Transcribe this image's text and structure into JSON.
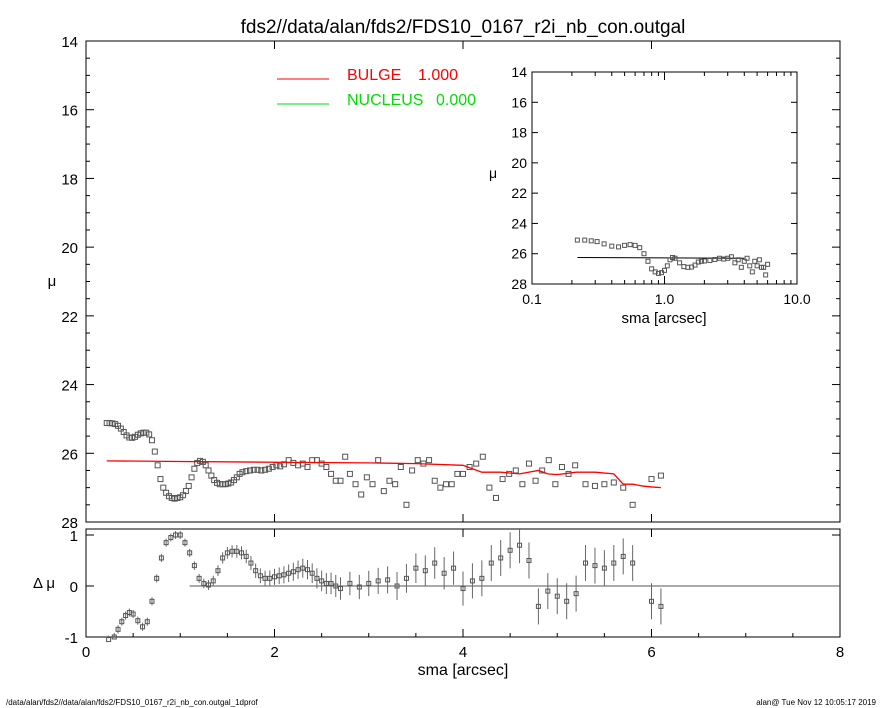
{
  "title": "fds2//data/alan/fds2/FDS10_0167_r2i_nb_con.outgal",
  "footer": {
    "left": "/data/alan/fds2//data/alan/fds2/FDS10_0167_r2i_nb_con.outgal_1dprof",
    "right": "alan@  Tue Nov 12 10:05:17 2019"
  },
  "colors": {
    "bulge": "#ff0000",
    "nucleus": "#00dd00",
    "data": "#555555",
    "axis": "#000000"
  },
  "chart_data": [
    {
      "panel": "main",
      "type": "scatter",
      "ylabel": "μ",
      "xlim": [
        0,
        8
      ],
      "ylim": [
        28,
        14
      ],
      "yticks": [
        "14",
        "16",
        "18",
        "20",
        "22",
        "24",
        "26",
        "28"
      ],
      "legend": [
        {
          "name": "BULGE",
          "value": "1.000",
          "color": "#ff0000"
        },
        {
          "name": "NUCLEUS",
          "value": "0.000",
          "color": "#00dd00"
        }
      ],
      "legend_position": "top-left",
      "series": [
        {
          "name": "data",
          "x": [
            0.22,
            0.25,
            0.28,
            0.31,
            0.34,
            0.37,
            0.4,
            0.43,
            0.46,
            0.49,
            0.52,
            0.55,
            0.58,
            0.61,
            0.64,
            0.67,
            0.7,
            0.73,
            0.76,
            0.79,
            0.82,
            0.85,
            0.88,
            0.91,
            0.94,
            0.97,
            1.0,
            1.03,
            1.06,
            1.09,
            1.12,
            1.15,
            1.18,
            1.21,
            1.24,
            1.27,
            1.3,
            1.33,
            1.36,
            1.39,
            1.42,
            1.45,
            1.48,
            1.51,
            1.54,
            1.57,
            1.6,
            1.63,
            1.66,
            1.7,
            1.74,
            1.78,
            1.82,
            1.86,
            1.9,
            1.94,
            1.98,
            2.02,
            2.06,
            2.1,
            2.15,
            2.2,
            2.25,
            2.3,
            2.35,
            2.4,
            2.45,
            2.5,
            2.55,
            2.6,
            2.65,
            2.7,
            2.75,
            2.8,
            2.86,
            2.92,
            2.98,
            3.04,
            3.1,
            3.16,
            3.22,
            3.28,
            3.34,
            3.4,
            3.46,
            3.52,
            3.58,
            3.64,
            3.7,
            3.76,
            3.82,
            3.88,
            3.94,
            4.0,
            4.07,
            4.14,
            4.21,
            4.28,
            4.35,
            4.42,
            4.49,
            4.56,
            4.63,
            4.7,
            4.77,
            4.84,
            4.91,
            4.98,
            5.05,
            5.12,
            5.19,
            5.3,
            5.4,
            5.5,
            5.6,
            5.7,
            5.8,
            6.0,
            6.1
          ],
          "y": [
            25.12,
            25.12,
            25.13,
            25.15,
            25.2,
            25.28,
            25.38,
            25.48,
            25.54,
            25.55,
            25.52,
            25.46,
            25.42,
            25.4,
            25.4,
            25.45,
            25.62,
            25.95,
            26.35,
            26.75,
            27.0,
            27.15,
            27.25,
            27.3,
            27.32,
            27.3,
            27.28,
            27.22,
            27.1,
            26.95,
            26.7,
            26.45,
            26.28,
            26.22,
            26.25,
            26.35,
            26.5,
            26.65,
            26.78,
            26.86,
            26.9,
            26.9,
            26.9,
            26.88,
            26.85,
            26.78,
            26.7,
            26.6,
            26.55,
            26.52,
            26.5,
            26.48,
            26.48,
            26.5,
            26.48,
            26.45,
            26.4,
            26.35,
            26.38,
            26.32,
            26.2,
            26.28,
            26.35,
            26.3,
            26.4,
            26.2,
            26.2,
            26.3,
            26.4,
            26.6,
            26.8,
            26.8,
            26.1,
            26.6,
            26.9,
            27.2,
            26.7,
            26.9,
            26.2,
            27.1,
            26.8,
            26.9,
            26.4,
            27.5,
            26.5,
            26.2,
            26.3,
            26.2,
            26.8,
            27.0,
            26.9,
            26.9,
            26.6,
            26.6,
            26.4,
            26.3,
            26.1,
            27.0,
            27.3,
            26.75,
            26.6,
            26.5,
            26.9,
            26.3,
            26.8,
            26.5,
            26.2,
            26.9,
            26.4,
            26.6,
            26.35,
            26.9,
            26.95,
            26.9,
            26.85,
            27.0,
            27.5,
            26.75,
            26.65
          ]
        },
        {
          "name": "BULGE",
          "x": [
            0.22,
            1.0,
            2.0,
            3.0,
            3.5,
            4.0,
            4.1,
            4.2,
            4.4,
            4.6,
            4.8,
            4.9,
            5.0,
            5.2,
            5.4,
            5.6,
            5.7,
            5.8,
            5.9,
            6.0,
            6.1
          ],
          "y": [
            26.22,
            26.24,
            26.26,
            26.28,
            26.3,
            26.35,
            26.45,
            26.55,
            26.55,
            26.6,
            26.5,
            26.6,
            26.62,
            26.55,
            26.55,
            26.6,
            26.9,
            26.9,
            26.95,
            26.98,
            27.0
          ]
        }
      ]
    },
    {
      "panel": "residual",
      "type": "scatter",
      "ylabel": "Δ μ",
      "xlabel": "sma [arcsec]",
      "xlim": [
        0,
        8
      ],
      "ylim": [
        -1,
        1
      ],
      "xticks": [
        "0",
        "2",
        "4",
        "6",
        "8"
      ],
      "yticks": [
        "-1",
        "0",
        "1"
      ],
      "reference_line": {
        "y": 0,
        "x_start": 1.1,
        "x_end": 8
      },
      "series": [
        {
          "name": "residual",
          "x": [
            0.24,
            0.3,
            0.34,
            0.38,
            0.42,
            0.46,
            0.5,
            0.55,
            0.6,
            0.65,
            0.7,
            0.75,
            0.8,
            0.85,
            0.9,
            0.95,
            1.0,
            1.05,
            1.1,
            1.15,
            1.2,
            1.25,
            1.3,
            1.35,
            1.4,
            1.45,
            1.5,
            1.55,
            1.6,
            1.65,
            1.7,
            1.75,
            1.8,
            1.85,
            1.9,
            1.95,
            2.0,
            2.05,
            2.1,
            2.15,
            2.2,
            2.25,
            2.3,
            2.35,
            2.4,
            2.45,
            2.5,
            2.55,
            2.6,
            2.65,
            2.7,
            2.8,
            2.9,
            3.0,
            3.1,
            3.2,
            3.3,
            3.4,
            3.5,
            3.6,
            3.7,
            3.8,
            3.9,
            4.0,
            4.1,
            4.2,
            4.3,
            4.4,
            4.5,
            4.6,
            4.7,
            4.8,
            4.9,
            5.0,
            5.1,
            5.2,
            5.3,
            5.4,
            5.5,
            5.6,
            5.7,
            5.8,
            6.0,
            6.1
          ],
          "y": [
            -1.05,
            -1.0,
            -0.85,
            -0.7,
            -0.58,
            -0.52,
            -0.55,
            -0.68,
            -0.8,
            -0.7,
            -0.3,
            0.15,
            0.55,
            0.85,
            0.95,
            1.0,
            1.0,
            0.85,
            0.65,
            0.4,
            0.15,
            0.05,
            0.02,
            0.1,
            0.3,
            0.55,
            0.65,
            0.68,
            0.68,
            0.65,
            0.58,
            0.45,
            0.3,
            0.2,
            0.15,
            0.15,
            0.18,
            0.2,
            0.22,
            0.25,
            0.28,
            0.32,
            0.35,
            0.32,
            0.25,
            0.15,
            0.1,
            0.05,
            0.05,
            0.0,
            -0.05,
            0.05,
            -0.02,
            0.05,
            0.1,
            0.12,
            0.0,
            0.15,
            0.35,
            0.3,
            0.45,
            0.25,
            0.35,
            -0.05,
            0.1,
            0.15,
            0.45,
            0.55,
            0.7,
            0.8,
            0.5,
            -0.4,
            -0.1,
            -0.2,
            -0.3,
            -0.15,
            0.45,
            0.4,
            0.35,
            0.45,
            0.58,
            0.45,
            -0.3,
            -0.4
          ]
        }
      ]
    },
    {
      "panel": "inset",
      "type": "scatter",
      "ylabel": "μ",
      "xlabel": "sma [arcsec]",
      "xscale": "log",
      "xlim": [
        0.1,
        10
      ],
      "ylim": [
        28,
        14
      ],
      "xticks": [
        "0.1",
        "1.0",
        "10.0"
      ],
      "yticks": [
        "14",
        "16",
        "18",
        "20",
        "22",
        "24",
        "26",
        "28"
      ],
      "series": [
        {
          "name": "data",
          "x": [
            0.22,
            0.25,
            0.28,
            0.31,
            0.35,
            0.4,
            0.45,
            0.5,
            0.55,
            0.6,
            0.65,
            0.7,
            0.75,
            0.8,
            0.85,
            0.9,
            0.95,
            1.0,
            1.05,
            1.1,
            1.15,
            1.2,
            1.3,
            1.4,
            1.5,
            1.6,
            1.7,
            1.8,
            1.9,
            2.0,
            2.2,
            2.4,
            2.6,
            2.8,
            3.0,
            3.2,
            3.4,
            3.6,
            3.8,
            4.0,
            4.2,
            4.4,
            4.6,
            4.8,
            5.0,
            5.2,
            5.4,
            5.6,
            5.8,
            6.0
          ],
          "y": [
            25.1,
            25.1,
            25.15,
            25.2,
            25.35,
            25.5,
            25.55,
            25.45,
            25.4,
            25.45,
            25.6,
            26.0,
            26.5,
            27.0,
            27.2,
            27.3,
            27.25,
            27.1,
            26.8,
            26.4,
            26.25,
            26.3,
            26.6,
            26.85,
            26.9,
            26.88,
            26.75,
            26.55,
            26.5,
            26.48,
            26.45,
            26.38,
            26.3,
            26.35,
            26.3,
            26.2,
            26.6,
            26.4,
            26.9,
            26.5,
            26.3,
            26.8,
            27.2,
            26.5,
            26.8,
            26.4,
            26.9,
            26.9,
            27.4,
            26.7
          ]
        },
        {
          "name": "fit",
          "x": [
            0.22,
            4.0
          ],
          "y": [
            26.25,
            26.3
          ]
        }
      ]
    }
  ]
}
